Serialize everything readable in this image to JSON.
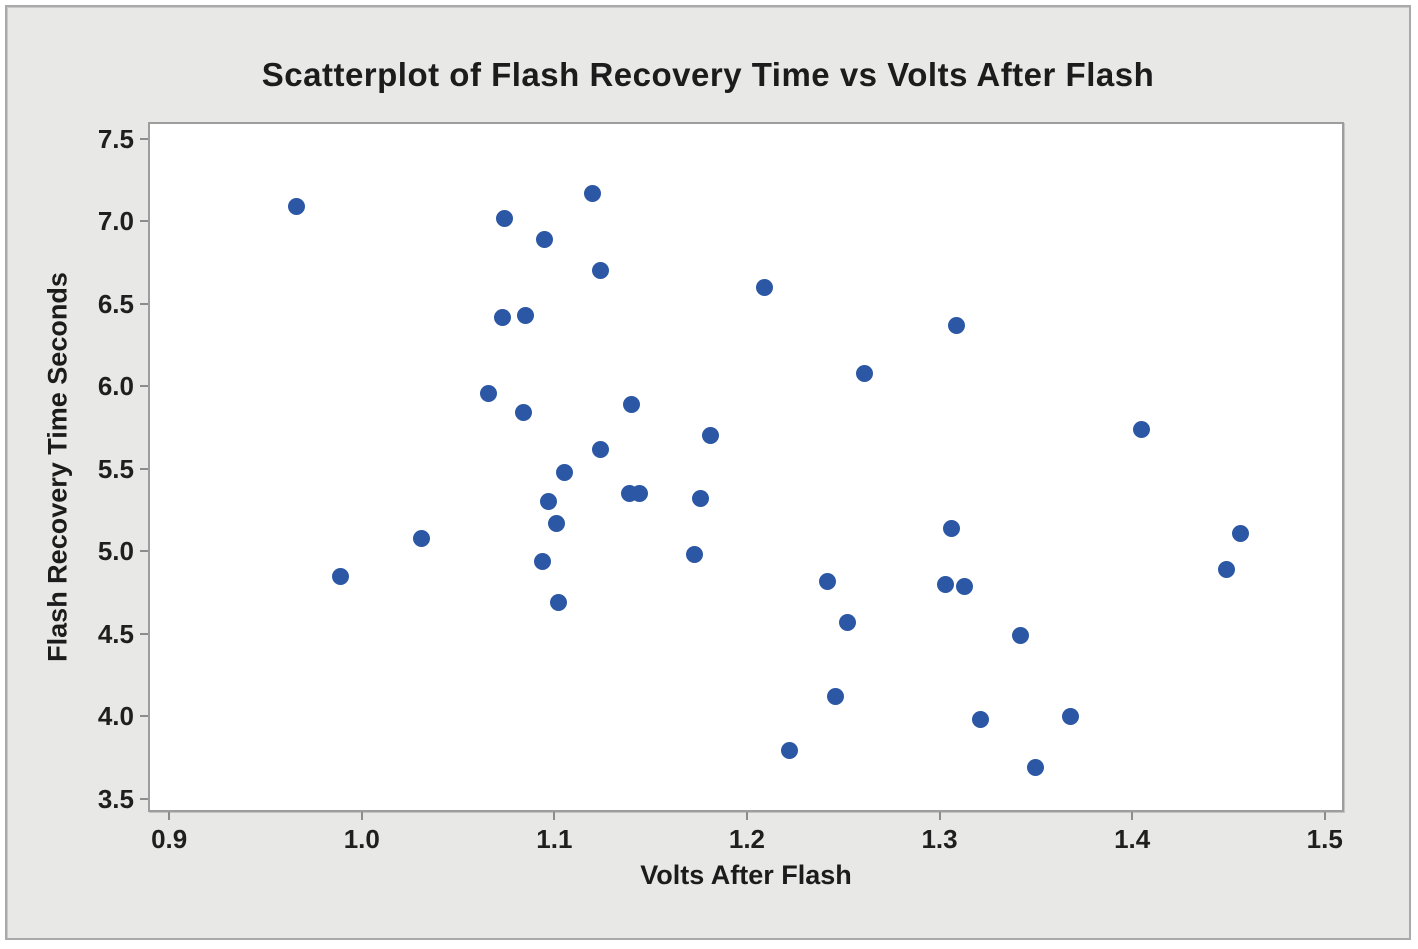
{
  "figure": {
    "title": "Scatterplot of Flash Recovery Time vs Volts After Flash"
  },
  "chart_data": {
    "type": "scatter",
    "title": "Scatterplot of Flash Recovery Time vs Volts After Flash",
    "xlabel": "Volts After Flash",
    "ylabel": "Flash Recovery Time Seconds",
    "xlim": [
      0.889,
      1.51
    ],
    "ylim": [
      3.42,
      7.603
    ],
    "x_ticks": [
      0.9,
      1.0,
      1.1,
      1.2,
      1.3,
      1.4,
      1.5
    ],
    "y_ticks": [
      3.5,
      4.0,
      4.5,
      5.0,
      5.5,
      6.0,
      6.5,
      7.0,
      7.5
    ],
    "grid": false,
    "legend_position": "none",
    "marker_color": "#2B57A5",
    "points": [
      [
        0.966,
        7.09
      ],
      [
        1.074,
        7.02
      ],
      [
        1.095,
        6.89
      ],
      [
        1.085,
        6.43
      ],
      [
        1.073,
        6.42
      ],
      [
        1.066,
        5.96
      ],
      [
        1.084,
        5.84
      ],
      [
        1.12,
        7.17
      ],
      [
        1.124,
        6.7
      ],
      [
        1.209,
        6.6
      ],
      [
        1.261,
        6.08
      ],
      [
        1.14,
        5.89
      ],
      [
        1.181,
        5.7
      ],
      [
        1.124,
        5.62
      ],
      [
        1.309,
        6.37
      ],
      [
        1.405,
        5.74
      ],
      [
        1.031,
        5.08
      ],
      [
        0.989,
        4.85
      ],
      [
        1.105,
        5.48
      ],
      [
        1.139,
        5.35
      ],
      [
        1.144,
        5.35
      ],
      [
        1.176,
        5.32
      ],
      [
        1.097,
        5.3
      ],
      [
        1.101,
        5.17
      ],
      [
        1.094,
        4.94
      ],
      [
        1.173,
        4.98
      ],
      [
        1.102,
        4.69
      ],
      [
        1.242,
        4.82
      ],
      [
        1.252,
        4.57
      ],
      [
        1.246,
        4.12
      ],
      [
        1.222,
        3.79
      ],
      [
        1.306,
        5.14
      ],
      [
        1.456,
        5.11
      ],
      [
        1.449,
        4.89
      ],
      [
        1.303,
        4.8
      ],
      [
        1.313,
        4.79
      ],
      [
        1.342,
        4.49
      ],
      [
        1.321,
        3.98
      ],
      [
        1.368,
        4.0
      ],
      [
        1.35,
        3.69
      ]
    ]
  },
  "colors": {
    "figure_background": "#e8e8e7",
    "plot_background": "#ffffff",
    "frame_border": "#a9a9a9",
    "plot_border": "#9d9d9d",
    "tick_mark": "#8c8c8c",
    "text": "#1c1c1c",
    "marker": "#2B57A5"
  }
}
